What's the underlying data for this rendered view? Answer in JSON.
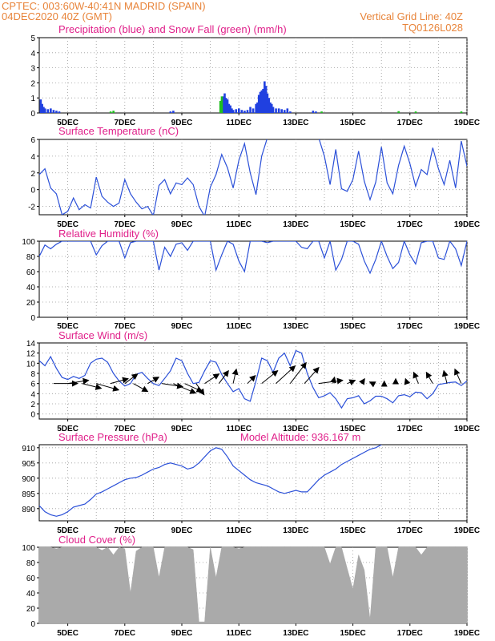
{
  "header": {
    "left_line1": "CPTEC:   003:60W-40:41N   MADRID (SPAIN)",
    "left_line2": "04DEC2020 40Z (GMT)",
    "right_line1": "Vertical Grid Line: 40Z",
    "right_line2": "TQ0126L028"
  },
  "colors": {
    "header": "#e8843a",
    "title": "#e0208a",
    "line": "#2b50d8",
    "snow": "#1fbf1f",
    "precip": "#2040e0",
    "cloud": "#aaaaaa",
    "grid": "#999999"
  },
  "x_ticks": [
    "5DEC",
    "7DEC",
    "9DEC",
    "11DEC",
    "13DEC",
    "15DEC",
    "17DEC",
    "19DEC"
  ],
  "chart_data": [
    {
      "id": "precip",
      "type": "bar",
      "title": "Precipitation (blue) and Snow Fall (green) (mm/h)",
      "ylim": [
        0,
        5
      ],
      "yticks": [
        "0",
        "1",
        "2",
        "3",
        "4",
        "5"
      ],
      "x_range": [
        4.0,
        19.0
      ],
      "series": [
        {
          "name": "Precipitation",
          "color": "#2040e0",
          "points": [
            [
              4.05,
              0.9
            ],
            [
              4.1,
              0.6
            ],
            [
              4.15,
              0.4
            ],
            [
              4.2,
              0.3
            ],
            [
              4.3,
              0.25
            ],
            [
              4.4,
              0.3
            ],
            [
              4.5,
              0.2
            ],
            [
              4.6,
              0.15
            ],
            [
              4.7,
              0.1
            ],
            [
              8.6,
              0.1
            ],
            [
              8.7,
              0.15
            ],
            [
              10.4,
              0.8
            ],
            [
              10.45,
              1.1
            ],
            [
              10.5,
              1.3
            ],
            [
              10.55,
              1.0
            ],
            [
              10.6,
              0.9
            ],
            [
              10.65,
              0.6
            ],
            [
              10.7,
              0.5
            ],
            [
              10.75,
              0.3
            ],
            [
              10.8,
              0.2
            ],
            [
              10.9,
              0.25
            ],
            [
              11.0,
              0.3
            ],
            [
              11.1,
              0.2
            ],
            [
              11.2,
              0.15
            ],
            [
              11.3,
              0.2
            ],
            [
              11.4,
              0.4
            ],
            [
              11.5,
              0.3
            ],
            [
              11.6,
              0.6
            ],
            [
              11.65,
              0.7
            ],
            [
              11.7,
              1.2
            ],
            [
              11.75,
              1.4
            ],
            [
              11.8,
              1.5
            ],
            [
              11.85,
              1.6
            ],
            [
              11.9,
              2.1
            ],
            [
              11.95,
              1.8
            ],
            [
              12.0,
              1.3
            ],
            [
              12.05,
              1.0
            ],
            [
              12.1,
              0.7
            ],
            [
              12.15,
              0.6
            ],
            [
              12.2,
              0.4
            ],
            [
              12.3,
              0.3
            ],
            [
              12.4,
              0.3
            ],
            [
              12.5,
              0.25
            ],
            [
              12.6,
              0.2
            ],
            [
              12.7,
              0.3
            ],
            [
              12.8,
              0.1
            ],
            [
              13.6,
              0.15
            ],
            [
              13.7,
              0.1
            ]
          ]
        },
        {
          "name": "Snow Fall",
          "color": "#1fbf1f",
          "points": [
            [
              6.5,
              0.1
            ],
            [
              6.6,
              0.15
            ],
            [
              10.35,
              0.8
            ],
            [
              10.4,
              1.1
            ],
            [
              13.9,
              0.1
            ],
            [
              16.6,
              0.12
            ],
            [
              17.2,
              0.1
            ],
            [
              18.8,
              0.1
            ]
          ]
        }
      ]
    },
    {
      "id": "temp",
      "type": "line",
      "title": "Surface Temperature (nC)",
      "ylim": [
        -3,
        6
      ],
      "yticks": [
        "-2",
        "0",
        "2",
        "4",
        "6"
      ],
      "ytick_values": [
        -2,
        0,
        2,
        4,
        6
      ],
      "x": [
        4.0,
        4.2,
        4.4,
        4.6,
        4.8,
        5.0,
        5.2,
        5.4,
        5.6,
        5.8,
        6.0,
        6.2,
        6.4,
        6.6,
        6.8,
        7.0,
        7.2,
        7.4,
        7.6,
        7.8,
        8.0,
        8.2,
        8.4,
        8.6,
        8.8,
        9.0,
        9.2,
        9.4,
        9.6,
        9.8,
        10.0,
        10.2,
        10.4,
        10.6,
        10.8,
        11.0,
        11.2,
        11.4,
        11.6,
        11.8,
        12.0,
        12.2,
        12.4,
        12.6,
        12.8,
        13.0,
        13.2,
        13.4,
        13.6,
        13.8,
        14.0,
        14.2,
        14.4,
        14.6,
        14.8,
        15.0,
        15.2,
        15.4,
        15.6,
        15.8,
        16.0,
        16.2,
        16.4,
        16.6,
        16.8,
        17.0,
        17.2,
        17.4,
        17.6,
        17.8,
        18.0,
        18.2,
        18.4,
        18.6,
        18.8,
        19.0
      ],
      "y": [
        1.8,
        2.5,
        0.2,
        -0.5,
        -3.0,
        -2.6,
        -1.0,
        -2.4,
        -1.8,
        -2.2,
        1.5,
        -0.8,
        -1.5,
        -2.0,
        -1.6,
        1.2,
        -0.5,
        -1.5,
        -2.3,
        -2.0,
        -3.1,
        0.5,
        1.2,
        -0.5,
        0.8,
        0.6,
        1.4,
        0.6,
        -2.0,
        -3.2,
        0.3,
        1.8,
        4.2,
        2.6,
        0.2,
        3.5,
        5.5,
        2.0,
        -0.6,
        4.0,
        6.2,
        6.2,
        6.2,
        6.2,
        6.2,
        6.2,
        6.2,
        6.2,
        6.2,
        6.2,
        4.0,
        0.6,
        4.8,
        0.1,
        -0.2,
        1.2,
        4.6,
        1.0,
        -1.2,
        0.9,
        5.1,
        0.8,
        -0.5,
        2.9,
        5.2,
        3.1,
        0.4,
        2.4,
        1.8,
        5.0,
        2.5,
        0.6,
        3.5,
        0.2,
        5.8,
        2.8
      ]
    },
    {
      "id": "rh",
      "type": "line",
      "title": "Relative Humidity (%)",
      "ylim": [
        0,
        100
      ],
      "yticks": [
        "0",
        "20",
        "40",
        "60",
        "80",
        "100"
      ],
      "x": [
        4.0,
        4.2,
        4.4,
        4.6,
        4.8,
        5.0,
        5.2,
        5.4,
        5.6,
        5.8,
        6.0,
        6.2,
        6.4,
        6.6,
        6.8,
        7.0,
        7.2,
        7.4,
        7.6,
        7.8,
        8.0,
        8.2,
        8.4,
        8.6,
        8.8,
        9.0,
        9.2,
        9.4,
        9.6,
        9.8,
        10.0,
        10.2,
        10.4,
        10.6,
        10.8,
        11.0,
        11.2,
        11.4,
        11.6,
        11.8,
        12.0,
        12.2,
        12.4,
        12.6,
        12.8,
        13.0,
        13.2,
        13.4,
        13.6,
        13.8,
        14.0,
        14.2,
        14.4,
        14.6,
        14.8,
        15.0,
        15.2,
        15.4,
        15.6,
        15.8,
        16.0,
        16.2,
        16.4,
        16.6,
        16.8,
        17.0,
        17.2,
        17.4,
        17.6,
        17.8,
        18.0,
        18.2,
        18.4,
        18.6,
        18.8,
        19.0
      ],
      "y": [
        80,
        95,
        90,
        96,
        100,
        100,
        100,
        100,
        100,
        100,
        82,
        94,
        100,
        100,
        100,
        78,
        98,
        100,
        100,
        100,
        100,
        62,
        92,
        80,
        96,
        98,
        88,
        100,
        100,
        100,
        100,
        62,
        82,
        100,
        96,
        74,
        60,
        100,
        100,
        100,
        98,
        100,
        100,
        100,
        100,
        100,
        92,
        90,
        100,
        100,
        78,
        100,
        62,
        76,
        100,
        100,
        96,
        74,
        58,
        76,
        100,
        80,
        64,
        72,
        100,
        82,
        70,
        98,
        100,
        100,
        78,
        76,
        100,
        90,
        68,
        100
      ]
    },
    {
      "id": "wind",
      "type": "line",
      "title": "Surface Wind (m/s)",
      "ylim": [
        -1,
        14
      ],
      "yticks": [
        "0",
        "2",
        "4",
        "6",
        "8",
        "10",
        "12",
        "14"
      ],
      "ytick_values": [
        0,
        2,
        4,
        6,
        8,
        10,
        12,
        14
      ],
      "x": [
        4.0,
        4.2,
        4.4,
        4.6,
        4.8,
        5.0,
        5.2,
        5.4,
        5.6,
        5.8,
        6.0,
        6.2,
        6.4,
        6.6,
        6.8,
        7.0,
        7.2,
        7.4,
        7.6,
        7.8,
        8.0,
        8.2,
        8.4,
        8.6,
        8.8,
        9.0,
        9.2,
        9.4,
        9.6,
        9.8,
        10.0,
        10.2,
        10.4,
        10.6,
        10.8,
        11.0,
        11.2,
        11.4,
        11.6,
        11.8,
        12.0,
        12.2,
        12.4,
        12.6,
        12.8,
        13.0,
        13.2,
        13.4,
        13.6,
        13.8,
        14.0,
        14.2,
        14.4,
        14.6,
        14.8,
        15.0,
        15.2,
        15.4,
        15.6,
        15.8,
        16.0,
        16.2,
        16.4,
        16.6,
        16.8,
        17.0,
        17.2,
        17.4,
        17.6,
        17.8,
        18.0,
        18.2,
        18.4,
        18.6,
        18.8,
        19.0
      ],
      "y": [
        10.5,
        9.5,
        11.3,
        9.0,
        7.2,
        6.8,
        7.4,
        7.0,
        7.6,
        10.0,
        10.8,
        11.0,
        10.2,
        8.0,
        6.5,
        5.5,
        6.0,
        7.8,
        8.2,
        7.0,
        6.0,
        5.6,
        7.0,
        8.5,
        11.0,
        10.5,
        8.0,
        6.0,
        6.2,
        8.5,
        10.5,
        10.2,
        7.8,
        6.0,
        4.4,
        5.0,
        3.0,
        2.5,
        6.5,
        11.0,
        10.5,
        8.2,
        11.0,
        12.0,
        9.5,
        12.5,
        12.0,
        8.0,
        5.2,
        3.2,
        3.6,
        4.2,
        3.0,
        1.2,
        3.0,
        3.2,
        3.6,
        2.0,
        2.6,
        3.5,
        3.5,
        3.0,
        2.2,
        3.6,
        3.8,
        3.4,
        4.3,
        4.2,
        3.0,
        4.0,
        5.8,
        6.0,
        6.2,
        6.3,
        5.6,
        6.5
      ]
    },
    {
      "id": "pres",
      "type": "line",
      "title": "Surface Pressure (hPa)",
      "subtitle": "Model Altitude: 936.167 m",
      "ylim": [
        886,
        911
      ],
      "yticks": [
        "890",
        "895",
        "900",
        "905",
        "910"
      ],
      "ytick_values": [
        890,
        895,
        900,
        905,
        910
      ],
      "x": [
        4.0,
        4.2,
        4.4,
        4.6,
        4.8,
        5.0,
        5.2,
        5.4,
        5.6,
        5.8,
        6.0,
        6.2,
        6.4,
        6.6,
        6.8,
        7.0,
        7.2,
        7.4,
        7.6,
        7.8,
        8.0,
        8.2,
        8.4,
        8.6,
        8.8,
        9.0,
        9.2,
        9.4,
        9.6,
        9.8,
        10.0,
        10.2,
        10.4,
        10.6,
        10.8,
        11.0,
        11.2,
        11.4,
        11.6,
        11.8,
        12.0,
        12.2,
        12.4,
        12.6,
        12.8,
        13.0,
        13.2,
        13.4,
        13.6,
        13.8,
        14.0,
        14.2,
        14.4,
        14.6,
        14.8,
        15.0,
        15.2,
        15.4,
        15.6,
        15.8,
        16.0,
        16.2,
        16.4,
        16.6,
        16.8,
        17.0,
        17.2,
        17.4,
        17.6,
        17.8,
        18.0,
        18.2,
        18.4,
        18.6,
        18.8,
        19.0
      ],
      "y": [
        891,
        889,
        888,
        887.5,
        888,
        889,
        890.5,
        891,
        891.5,
        893,
        894.8,
        895.5,
        896.5,
        897.5,
        898.5,
        899.5,
        900,
        900.2,
        901,
        902,
        903,
        903.5,
        904.5,
        905,
        904.5,
        904,
        903,
        903.5,
        905,
        907,
        909,
        910,
        909.5,
        907,
        904,
        902.5,
        901,
        899.5,
        898.5,
        898,
        897.5,
        896.5,
        895.5,
        895,
        895.5,
        896,
        895.5,
        895.5,
        897.5,
        899.5,
        901,
        902,
        903,
        904.5,
        905.5,
        906.5,
        907.5,
        908.5,
        909.5,
        910,
        911,
        912,
        912,
        912,
        912,
        912,
        912,
        912,
        912,
        912,
        912,
        912,
        912,
        912,
        912,
        912
      ]
    },
    {
      "id": "cloud",
      "type": "area",
      "title": "Cloud Cover (%)",
      "ylim": [
        0,
        100
      ],
      "yticks": [
        "0",
        "20",
        "40",
        "60",
        "80",
        "100"
      ],
      "x": [
        4.0,
        4.2,
        4.4,
        4.6,
        4.8,
        5.0,
        5.2,
        5.4,
        5.6,
        5.8,
        6.0,
        6.2,
        6.4,
        6.6,
        6.8,
        7.0,
        7.2,
        7.4,
        7.6,
        7.8,
        8.0,
        8.2,
        8.4,
        8.6,
        8.8,
        9.0,
        9.2,
        9.4,
        9.6,
        9.8,
        10.0,
        10.2,
        10.4,
        10.6,
        10.8,
        11.0,
        11.2,
        11.4,
        11.6,
        11.8,
        12.0,
        12.2,
        12.4,
        12.6,
        12.8,
        13.0,
        13.2,
        13.4,
        13.6,
        13.8,
        14.0,
        14.2,
        14.4,
        14.6,
        14.8,
        15.0,
        15.2,
        15.4,
        15.6,
        15.8,
        16.0,
        16.2,
        16.4,
        16.6,
        16.8,
        17.0,
        17.2,
        17.4,
        17.6,
        17.8,
        18.0,
        18.2,
        18.4,
        18.6,
        18.8,
        19.0
      ],
      "y": [
        100,
        100,
        100,
        98,
        100,
        100,
        100,
        100,
        100,
        100,
        100,
        96,
        100,
        90,
        100,
        98,
        40,
        95,
        100,
        100,
        100,
        60,
        100,
        100,
        100,
        100,
        100,
        97,
        2,
        2,
        100,
        60,
        100,
        100,
        100,
        98,
        100,
        100,
        100,
        100,
        100,
        100,
        100,
        100,
        100,
        100,
        100,
        100,
        100,
        100,
        100,
        78,
        100,
        100,
        72,
        45,
        90,
        70,
        5,
        100,
        100,
        100,
        60,
        100,
        100,
        100,
        100,
        90,
        100,
        100,
        100,
        100,
        100,
        100,
        100,
        100
      ]
    }
  ],
  "wind_barbs": [
    {
      "x": 4.5,
      "dx": 30,
      "dy": 0
    },
    {
      "x": 5.0,
      "dx": 26,
      "dy": -4
    },
    {
      "x": 5.5,
      "dx": 24,
      "dy": 6
    },
    {
      "x": 6.0,
      "dx": 28,
      "dy": 8
    },
    {
      "x": 6.5,
      "dx": 22,
      "dy": -6
    },
    {
      "x": 7.0,
      "dx": 16,
      "dy": -12
    },
    {
      "x": 7.3,
      "dx": 18,
      "dy": 10
    },
    {
      "x": 7.8,
      "dx": 14,
      "dy": -8
    },
    {
      "x": 8.3,
      "dx": 26,
      "dy": 4
    },
    {
      "x": 8.7,
      "dx": 28,
      "dy": 12
    },
    {
      "x": 9.1,
      "dx": 22,
      "dy": 10
    },
    {
      "x": 9.5,
      "dx": 10,
      "dy": 14
    },
    {
      "x": 9.8,
      "dx": 18,
      "dy": -12
    },
    {
      "x": 10.3,
      "dx": 12,
      "dy": -16
    },
    {
      "x": 10.8,
      "dx": 4,
      "dy": -18
    },
    {
      "x": 11.3,
      "dx": 10,
      "dy": -10
    },
    {
      "x": 11.8,
      "dx": 20,
      "dy": -16
    },
    {
      "x": 12.3,
      "dx": 24,
      "dy": -22
    },
    {
      "x": 12.8,
      "dx": 20,
      "dy": -26
    },
    {
      "x": 13.3,
      "dx": 18,
      "dy": -20
    },
    {
      "x": 13.8,
      "dx": 30,
      "dy": -4
    },
    {
      "x": 14.3,
      "dx": 2,
      "dy": -8
    },
    {
      "x": 14.8,
      "dx": 10,
      "dy": -4
    },
    {
      "x": 15.3,
      "dx": 4,
      "dy": -6
    },
    {
      "x": 15.7,
      "dx": -4,
      "dy": -2
    },
    {
      "x": 16.1,
      "dx": 0,
      "dy": -3
    },
    {
      "x": 16.5,
      "dx": 0,
      "dy": -6
    },
    {
      "x": 16.9,
      "dx": -2,
      "dy": -6
    },
    {
      "x": 17.3,
      "dx": -6,
      "dy": -14
    },
    {
      "x": 17.8,
      "dx": -8,
      "dy": -14
    },
    {
      "x": 18.3,
      "dx": -4,
      "dy": -16
    },
    {
      "x": 18.8,
      "dx": -8,
      "dy": -18
    }
  ]
}
